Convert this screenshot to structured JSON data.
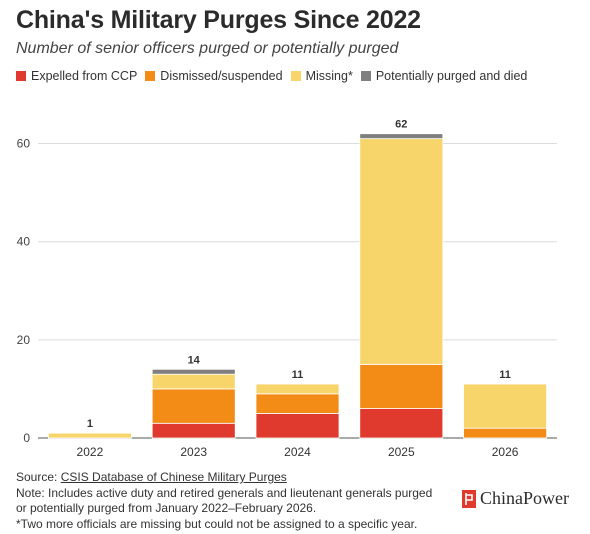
{
  "title": "China's Military Purges Since 2022",
  "subtitle": "Number of senior officers purged or potentially purged",
  "legend": [
    {
      "label": "Expelled from CCP",
      "color": "#e03a2f"
    },
    {
      "label": "Dismissed/suspended",
      "color": "#f28c17"
    },
    {
      "label": "Missing*",
      "color": "#f7d56b"
    },
    {
      "label": "Potentially purged and died",
      "color": "#7f7f7f"
    }
  ],
  "chart_data": {
    "type": "bar",
    "stacked": true,
    "categories": [
      "2022",
      "2023",
      "2024",
      "2025",
      "2026"
    ],
    "series": [
      {
        "name": "Expelled from CCP",
        "color": "#e03a2f",
        "values": [
          0,
          3,
          5,
          6,
          0
        ]
      },
      {
        "name": "Dismissed/suspended",
        "color": "#f28c17",
        "values": [
          0,
          7,
          4,
          9,
          2
        ]
      },
      {
        "name": "Missing*",
        "color": "#f7d56b",
        "values": [
          1,
          3,
          2,
          46,
          9
        ]
      },
      {
        "name": "Potentially purged and died",
        "color": "#7f7f7f",
        "values": [
          0,
          1,
          0,
          1,
          0
        ]
      }
    ],
    "totals": [
      1,
      14,
      11,
      62,
      11
    ],
    "ylim": [
      0,
      65
    ],
    "yticks": [
      0,
      20,
      40,
      60
    ],
    "grid": true
  },
  "footer": {
    "source_prefix": "Source: ",
    "source_link": "CSIS Database of Chinese Military Purges",
    "note1": "Note: Includes active duty and retired generals and lieutenant generals purged",
    "note2": "or potentially purged from January 2022–February 2026.",
    "note3": "*Two more officials are missing but could not be assigned to a specific year."
  },
  "brand": {
    "name": "ChinaPower",
    "icon": "china-power-logo-icon"
  }
}
